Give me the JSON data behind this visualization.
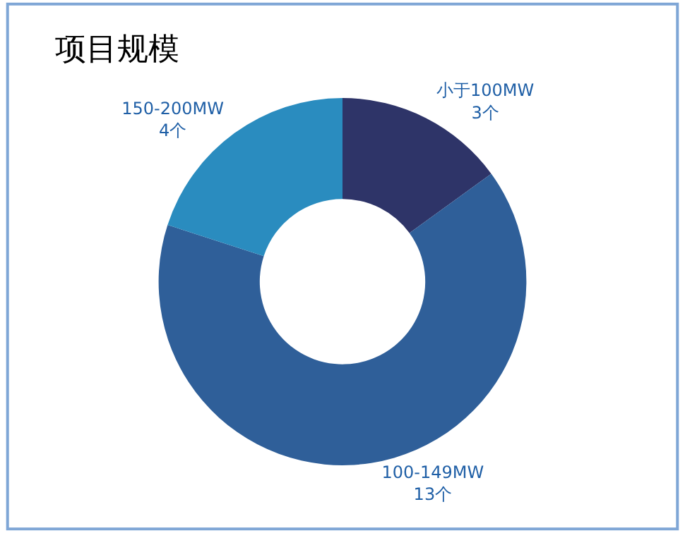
{
  "chart_data": {
    "type": "donut",
    "title": "项目规模",
    "categories": [
      "小于100MW",
      "100-149MW",
      "150-200MW"
    ],
    "values": [
      3,
      13,
      4
    ],
    "value_labels": [
      "3个",
      "13个",
      "4个"
    ],
    "colors": [
      "#2e3468",
      "#2f5f99",
      "#2a8cbf"
    ],
    "legend": false
  }
}
